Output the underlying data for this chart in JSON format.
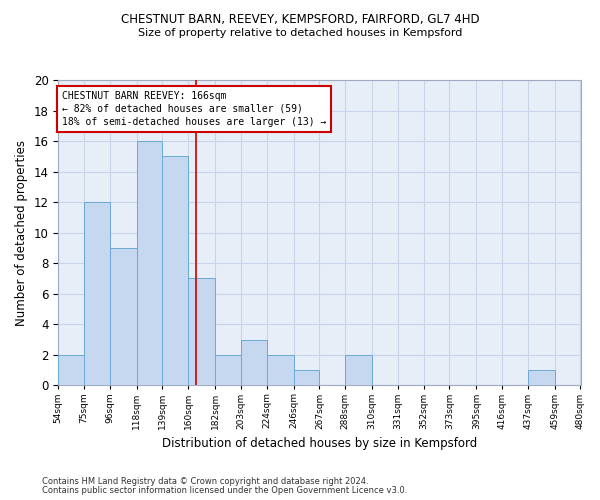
{
  "title1": "CHESTNUT BARN, REEVEY, KEMPSFORD, FAIRFORD, GL7 4HD",
  "title2": "Size of property relative to detached houses in Kempsford",
  "xlabel": "Distribution of detached houses by size in Kempsford",
  "ylabel": "Number of detached properties",
  "bin_edges": [
    54,
    75,
    96,
    118,
    139,
    160,
    182,
    203,
    224,
    246,
    267,
    288,
    310,
    331,
    352,
    373,
    395,
    416,
    437,
    459,
    480
  ],
  "bar_heights": [
    2,
    12,
    9,
    16,
    15,
    7,
    2,
    3,
    2,
    1,
    0,
    2,
    0,
    0,
    0,
    0,
    0,
    0,
    1,
    0
  ],
  "bar_color": "#c5d8f0",
  "bar_edge_color": "#6aaad4",
  "grid_color": "#c8d4e8",
  "bg_color": "#e8eef8",
  "redline_x": 166,
  "redline_color": "#cc0000",
  "annotation_text": "CHESTNUT BARN REEVEY: 166sqm\n← 82% of detached houses are smaller (59)\n18% of semi-detached houses are larger (13) →",
  "annotation_box_color": "#ffffff",
  "annotation_box_edge": "#cc0000",
  "ylim": [
    0,
    20
  ],
  "yticks": [
    0,
    2,
    4,
    6,
    8,
    10,
    12,
    14,
    16,
    18,
    20
  ],
  "footnote1": "Contains HM Land Registry data © Crown copyright and database right 2024.",
  "footnote2": "Contains public sector information licensed under the Open Government Licence v3.0."
}
